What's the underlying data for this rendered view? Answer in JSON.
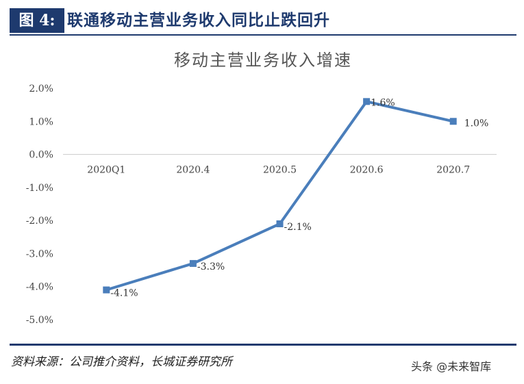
{
  "header": {
    "figure_label": "图 4:",
    "title": "联通移动主营业务收入同比止跌回升"
  },
  "chart_data": {
    "type": "line",
    "title": "移动主营业务收入增速",
    "categories": [
      "2020Q1",
      "2020.4",
      "2020.5",
      "2020.6",
      "2020.7"
    ],
    "series": [
      {
        "values": [
          -4.1,
          -3.3,
          -2.1,
          1.6,
          1.0
        ]
      }
    ],
    "data_labels": [
      "-4.1%",
      "-3.3%",
      "-2.1%",
      "1.6%",
      "1.0%"
    ],
    "yticks": [
      "2.0%",
      "1.0%",
      "0.0%",
      "-1.0%",
      "-2.0%",
      "-3.0%",
      "-4.0%",
      "-5.0%"
    ],
    "ytick_values": [
      2,
      1,
      0,
      -1,
      -2,
      -3,
      -4,
      -5
    ],
    "ylim": [
      -5,
      2
    ],
    "grid": false,
    "legend": "none",
    "line_color": "#4a7ebb",
    "axis_color": "#d0d0d0"
  },
  "footer": {
    "source": "资料来源：公司推介资料，长城证券研究所",
    "watermark": "头条 @未来智库"
  },
  "colors": {
    "brand": "#1e3a6e"
  }
}
